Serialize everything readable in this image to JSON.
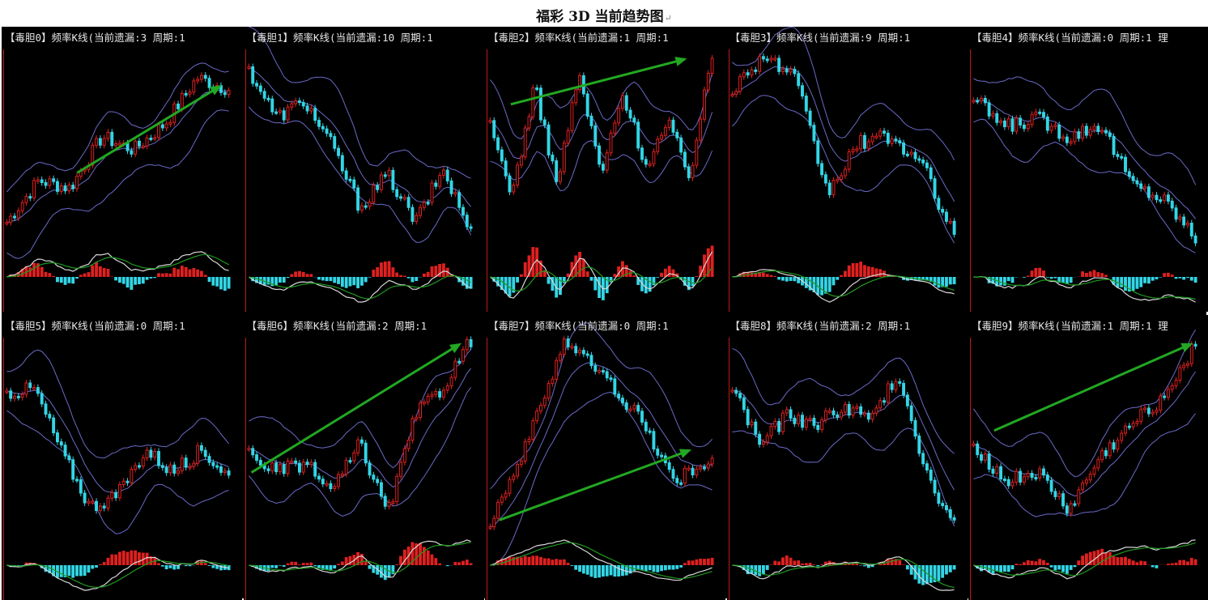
{
  "page_title": "福彩 3D 当前趋势图",
  "return_mark": "↵",
  "colors": {
    "background": "#000000",
    "bull": "#e02020",
    "bear": "#33d6e6",
    "band": "#6a6ac8",
    "arrow": "#22a822",
    "macd_fast": "#d8d8d8",
    "macd_slow": "#1e9a1e",
    "axis": "#c01818"
  },
  "chart_data": [
    {
      "type": "candlestick",
      "header": "【毒胆0】频率K线(当前遗漏:3 周期:1",
      "trend": [
        0.1,
        0.32,
        0.28,
        0.55,
        0.48,
        0.62,
        0.86,
        0.8
      ],
      "arrows": [
        {
          "from": [
            0.32,
            0.36
          ],
          "to": [
            0.96,
            0.82
          ]
        }
      ]
    },
    {
      "type": "candlestick",
      "header": "【毒胆1】频率K线(当前遗漏:10 周期:1",
      "trend": [
        0.9,
        0.65,
        0.74,
        0.5,
        0.18,
        0.35,
        0.1,
        0.38,
        0.04
      ],
      "arrows": []
    },
    {
      "type": "candlestick",
      "header": "【毒胆2】频率K线(当前遗漏:1 周期:1",
      "trend": [
        0.6,
        0.25,
        0.82,
        0.3,
        0.88,
        0.35,
        0.78,
        0.4,
        0.62,
        0.35,
        0.98
      ],
      "arrows": [
        {
          "from": [
            0.1,
            0.72
          ],
          "to": [
            0.88,
            0.96
          ]
        }
      ]
    },
    {
      "type": "candlestick",
      "header": "【毒胆3】频率K线(当前遗漏:9 周期:1",
      "trend": [
        0.8,
        0.98,
        0.85,
        0.25,
        0.52,
        0.55,
        0.4,
        0.02
      ],
      "arrows": []
    },
    {
      "type": "candlestick",
      "header": "【毒胆4】频率K线(当前遗漏:0 周期:1 理",
      "trend": [
        0.75,
        0.6,
        0.65,
        0.55,
        0.62,
        0.3,
        0.22,
        0.02
      ],
      "arrows": []
    },
    {
      "type": "candlestick",
      "header": "【毒胆5】频率K线(当前遗漏:0 周期:1",
      "trend": [
        0.72,
        0.74,
        0.4,
        0.12,
        0.18,
        0.42,
        0.3,
        0.42,
        0.28
      ],
      "arrows": []
    },
    {
      "type": "candlestick",
      "header": "【毒胆6】频率K线(当前遗漏:2 周期:1",
      "trend": [
        0.4,
        0.3,
        0.35,
        0.2,
        0.45,
        0.08,
        0.6,
        0.75,
        1.0
      ],
      "arrows": [
        {
          "from": [
            0.02,
            0.3
          ],
          "to": [
            0.95,
            0.98
          ]
        }
      ]
    },
    {
      "type": "candlestick",
      "header": "【毒胆7】频率K线(当前遗漏:0 周期:1",
      "trend": [
        0.05,
        0.45,
        1.0,
        0.82,
        0.6,
        0.25,
        0.38
      ],
      "arrows": [
        {
          "from": [
            0.05,
            0.05
          ],
          "to": [
            0.9,
            0.42
          ]
        }
      ]
    },
    {
      "type": "candlestick",
      "header": "【毒胆8】频率K线(当前遗漏:2 周期:1",
      "trend": [
        0.75,
        0.45,
        0.6,
        0.55,
        0.65,
        0.58,
        0.82,
        0.3,
        0.02
      ],
      "arrows": []
    },
    {
      "type": "candlestick",
      "header": "【毒胆9】频率K线(当前遗漏:1 周期:1 理",
      "trend": [
        0.45,
        0.25,
        0.3,
        0.1,
        0.38,
        0.55,
        0.7,
        0.98
      ],
      "arrows": [
        {
          "from": [
            0.1,
            0.52
          ],
          "to": [
            0.98,
            0.98
          ]
        }
      ]
    }
  ]
}
